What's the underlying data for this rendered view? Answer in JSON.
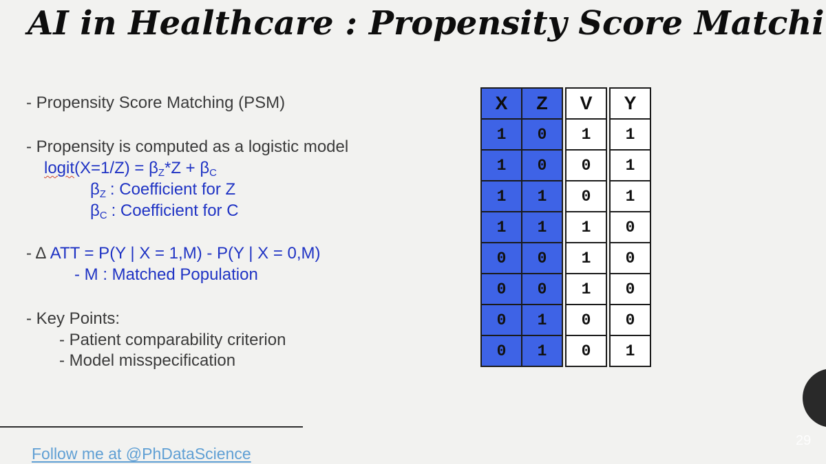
{
  "title": "AI in Healthcare : Propensity Score Matching",
  "bullets": {
    "psm": "- Propensity Score Matching (PSM)",
    "logistic": "- Propensity is computed as a logistic model"
  },
  "formula": {
    "logit_word": "logit",
    "logit_rest": "(X=1/Z) = ",
    "beta": "β",
    "sub_z": "Z",
    "middle": "*Z + ",
    "sub_c": "C",
    "coeff_z_label": ": Coefficient for Z",
    "coeff_c_label": ": Coefficient for C"
  },
  "att": {
    "prefix": "- Δ ",
    "equation": "ATT = P(Y | X = 1,M) - P(Y | X = 0,M)",
    "matched": "- M : Matched Population"
  },
  "key_points": {
    "header": "- Key Points:",
    "items": [
      "- Patient comparability criterion",
      "- Model misspecification"
    ]
  },
  "footer": {
    "link_label": "Follow me at @PhDataScience"
  },
  "slide_number": "29",
  "table": {
    "headers": [
      "X",
      "Z",
      "V",
      "Y"
    ],
    "rows": [
      [
        1,
        0,
        1,
        1
      ],
      [
        1,
        0,
        0,
        1
      ],
      [
        1,
        1,
        0,
        1
      ],
      [
        1,
        1,
        1,
        0
      ],
      [
        0,
        0,
        1,
        0
      ],
      [
        0,
        0,
        1,
        0
      ],
      [
        0,
        1,
        0,
        0
      ],
      [
        0,
        1,
        0,
        1
      ]
    ],
    "highlighted_columns": [
      "X",
      "Z"
    ],
    "highlight_color": "#3e63e6"
  },
  "colors": {
    "background": "#f2f2f0",
    "body_text": "#3a3a3a",
    "formula_blue": "#1f33c4",
    "link_blue": "#5f9fd4",
    "table_blue": "#3e63e6",
    "circle_dark": "#292929"
  }
}
